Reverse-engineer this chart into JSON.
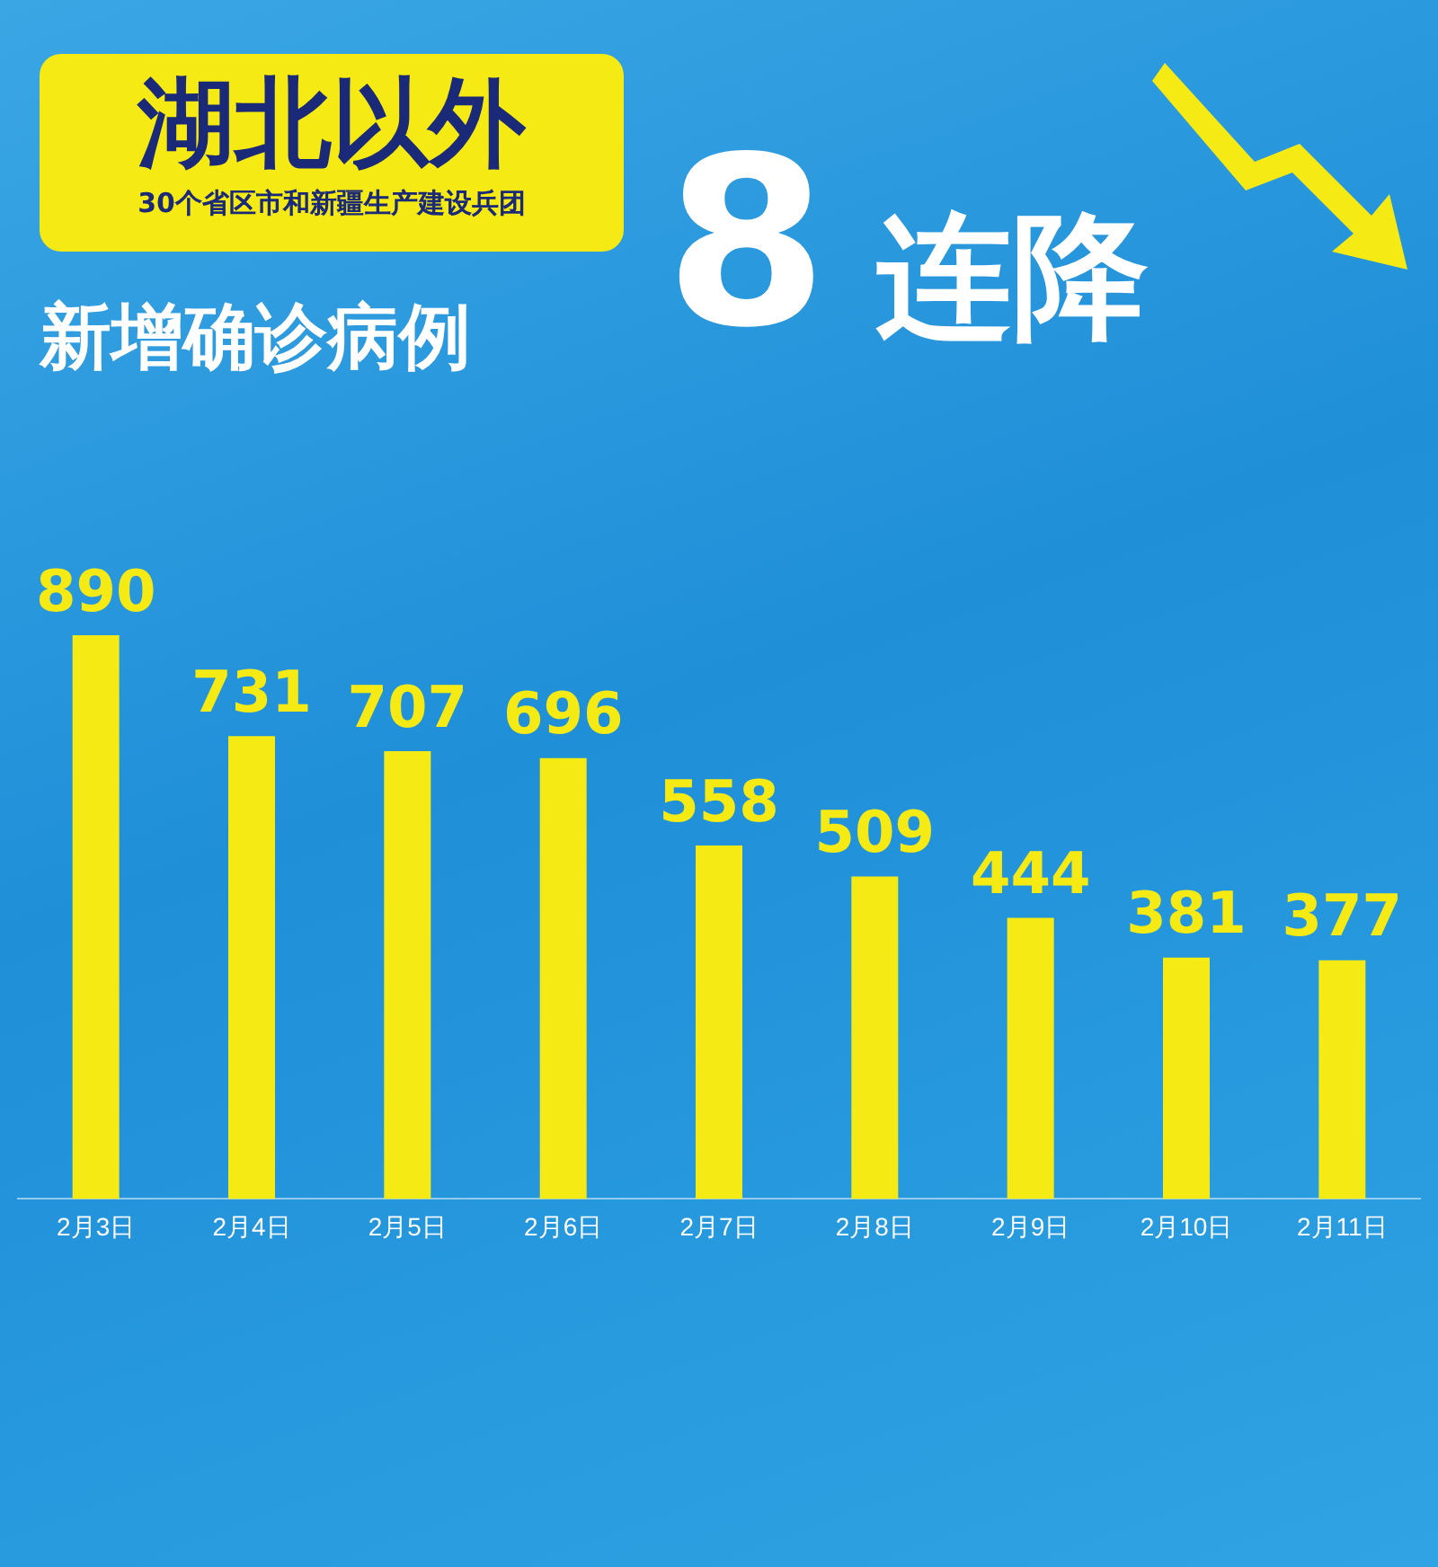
{
  "chart_data": {
    "type": "bar",
    "title": "湖北以外",
    "subtitle": "30个省区市和新疆生产建设兵团",
    "annotations": [
      "新增确诊病例",
      "8连降"
    ],
    "categories": [
      "2月3日",
      "2月4日",
      "2月5日",
      "2月6日",
      "2月7日",
      "2月8日",
      "2月9日",
      "2月10日",
      "2月11日"
    ],
    "values": [
      890,
      731,
      707,
      696,
      558,
      509,
      444,
      381,
      377
    ],
    "color": "#f5ea14",
    "data_labels": true,
    "legend": false,
    "grid": false
  }
}
